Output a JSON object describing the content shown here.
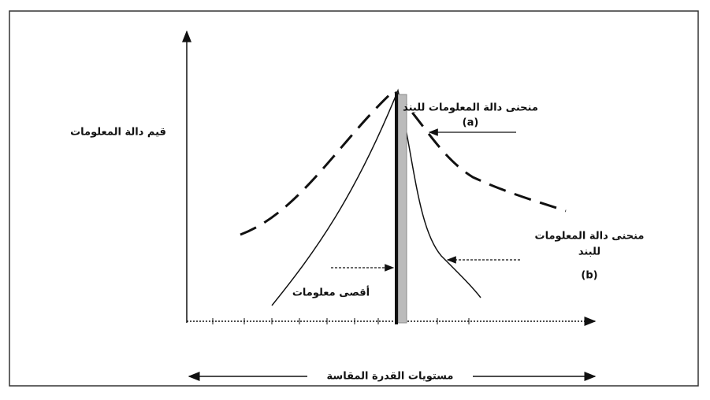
{
  "y_axis_label": "قيم دالة المعلومات",
  "x_axis_label": "مستويات القدرة المقاسة",
  "curve_a": {
    "label": "منحنى دالة المعلومات للبند",
    "id": "(a)"
  },
  "curve_b": {
    "label_lines": [
      "منحنى دالة المعلومات",
      "للبند"
    ],
    "id": "(b)"
  },
  "max_info_label": "أقصى معلومات"
}
